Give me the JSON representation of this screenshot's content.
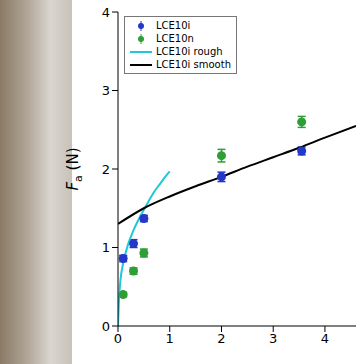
{
  "chart_data": {
    "type": "scatter",
    "y_label": "Fa (N)",
    "xlim": [
      0,
      4.6
    ],
    "xticks": [
      0,
      1,
      2,
      3,
      4
    ],
    "ylim": [
      0,
      4
    ],
    "yticks": [
      0,
      1,
      2,
      3,
      4
    ],
    "legend": "upper left",
    "series": [
      {
        "name": "LCE10i",
        "type": "scatter",
        "marker": "o",
        "color": "#2338c8",
        "x": [
          0.1,
          0.3,
          0.5,
          2,
          3.55
        ],
        "values": [
          0.86,
          1.05,
          1.37,
          1.9,
          2.23
        ],
        "errors": [
          0.04,
          0.05,
          0.04,
          0.06,
          0.05
        ]
      },
      {
        "name": "LCE10n",
        "type": "scatter",
        "marker": "o",
        "color": "#2e9e36",
        "x": [
          0.1,
          0.3,
          0.5,
          2,
          3.55
        ],
        "values": [
          0.4,
          0.7,
          0.93,
          2.17,
          2.6
        ],
        "errors": [
          0.03,
          0.04,
          0.05,
          0.08,
          0.07
        ]
      },
      {
        "name": "LCE10i rough",
        "type": "line",
        "line_style": "solid",
        "color": "#1ec8d8",
        "x": [
          0,
          0.02,
          0.05,
          0.1,
          0.2,
          0.3,
          0.4,
          0.5,
          0.6,
          0.7,
          0.8,
          0.9,
          1
        ],
        "values": [
          0,
          0.35,
          0.6,
          0.8,
          1.05,
          1.22,
          1.36,
          1.48,
          1.6,
          1.71,
          1.8,
          1.89,
          1.97
        ]
      },
      {
        "name": "LCE10i smooth",
        "type": "line",
        "line_style": "solid",
        "color": "#000000",
        "x": [
          0,
          0.5,
          1,
          1.5,
          2,
          2.5,
          3,
          3.5,
          4,
          4.6
        ],
        "values": [
          1.3,
          1.5,
          1.65,
          1.78,
          1.9,
          2.03,
          2.15,
          2.27,
          2.4,
          2.55
        ]
      }
    ]
  }
}
